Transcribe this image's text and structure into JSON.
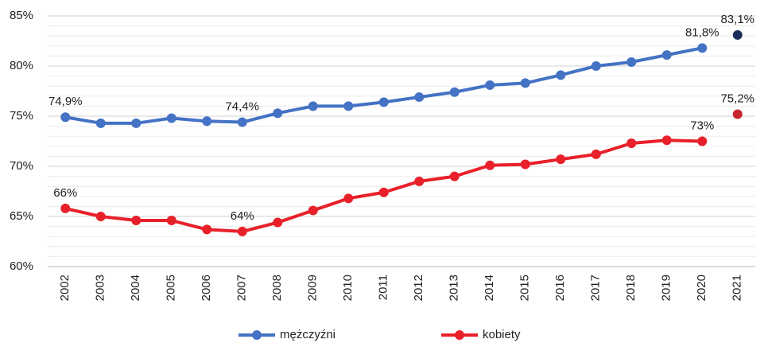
{
  "chart_data": {
    "type": "line",
    "categories": [
      "2002",
      "2003",
      "2004",
      "2005",
      "2006",
      "2007",
      "2008",
      "2009",
      "2010",
      "2011",
      "2012",
      "2013",
      "2014",
      "2015",
      "2016",
      "2017",
      "2018",
      "2019",
      "2020",
      "2021"
    ],
    "series": [
      {
        "name": "mężczyźni",
        "color": "#4472c4",
        "detached_last_point": {
          "color": "#1f2d5a"
        },
        "values": [
          74.9,
          74.3,
          74.3,
          74.8,
          74.5,
          74.4,
          75.3,
          76.0,
          76.0,
          76.4,
          76.9,
          77.4,
          78.1,
          78.3,
          79.1,
          80.0,
          80.4,
          81.1,
          81.8,
          83.1
        ],
        "value_labels": [
          "74,9%",
          null,
          null,
          null,
          null,
          "74,4%",
          null,
          null,
          null,
          null,
          null,
          null,
          null,
          null,
          null,
          null,
          null,
          null,
          "81,8%",
          "83,1%"
        ]
      },
      {
        "name": "kobiety",
        "color": "#e8202a",
        "detached_last_point": {
          "color": "#c8262e"
        },
        "values": [
          65.8,
          65.0,
          64.6,
          64.6,
          63.7,
          63.5,
          64.4,
          65.6,
          66.8,
          67.4,
          68.5,
          69.0,
          70.1,
          70.2,
          70.7,
          71.2,
          72.3,
          72.6,
          72.5,
          75.2
        ],
        "value_labels": [
          "66%",
          null,
          null,
          null,
          null,
          "64%",
          null,
          null,
          null,
          null,
          null,
          null,
          null,
          null,
          null,
          null,
          null,
          null,
          "73%",
          "75,2%"
        ]
      }
    ],
    "ylim": [
      60,
      85
    ],
    "yticks": [
      {
        "value": 60,
        "label": "60%"
      },
      {
        "value": 65,
        "label": "65%"
      },
      {
        "value": 70,
        "label": "70%"
      },
      {
        "value": 75,
        "label": "75%"
      },
      {
        "value": 80,
        "label": "80%"
      },
      {
        "value": 85,
        "label": "85%"
      }
    ],
    "grid": true,
    "minor_grid_step": 1,
    "legend": "bottom"
  }
}
